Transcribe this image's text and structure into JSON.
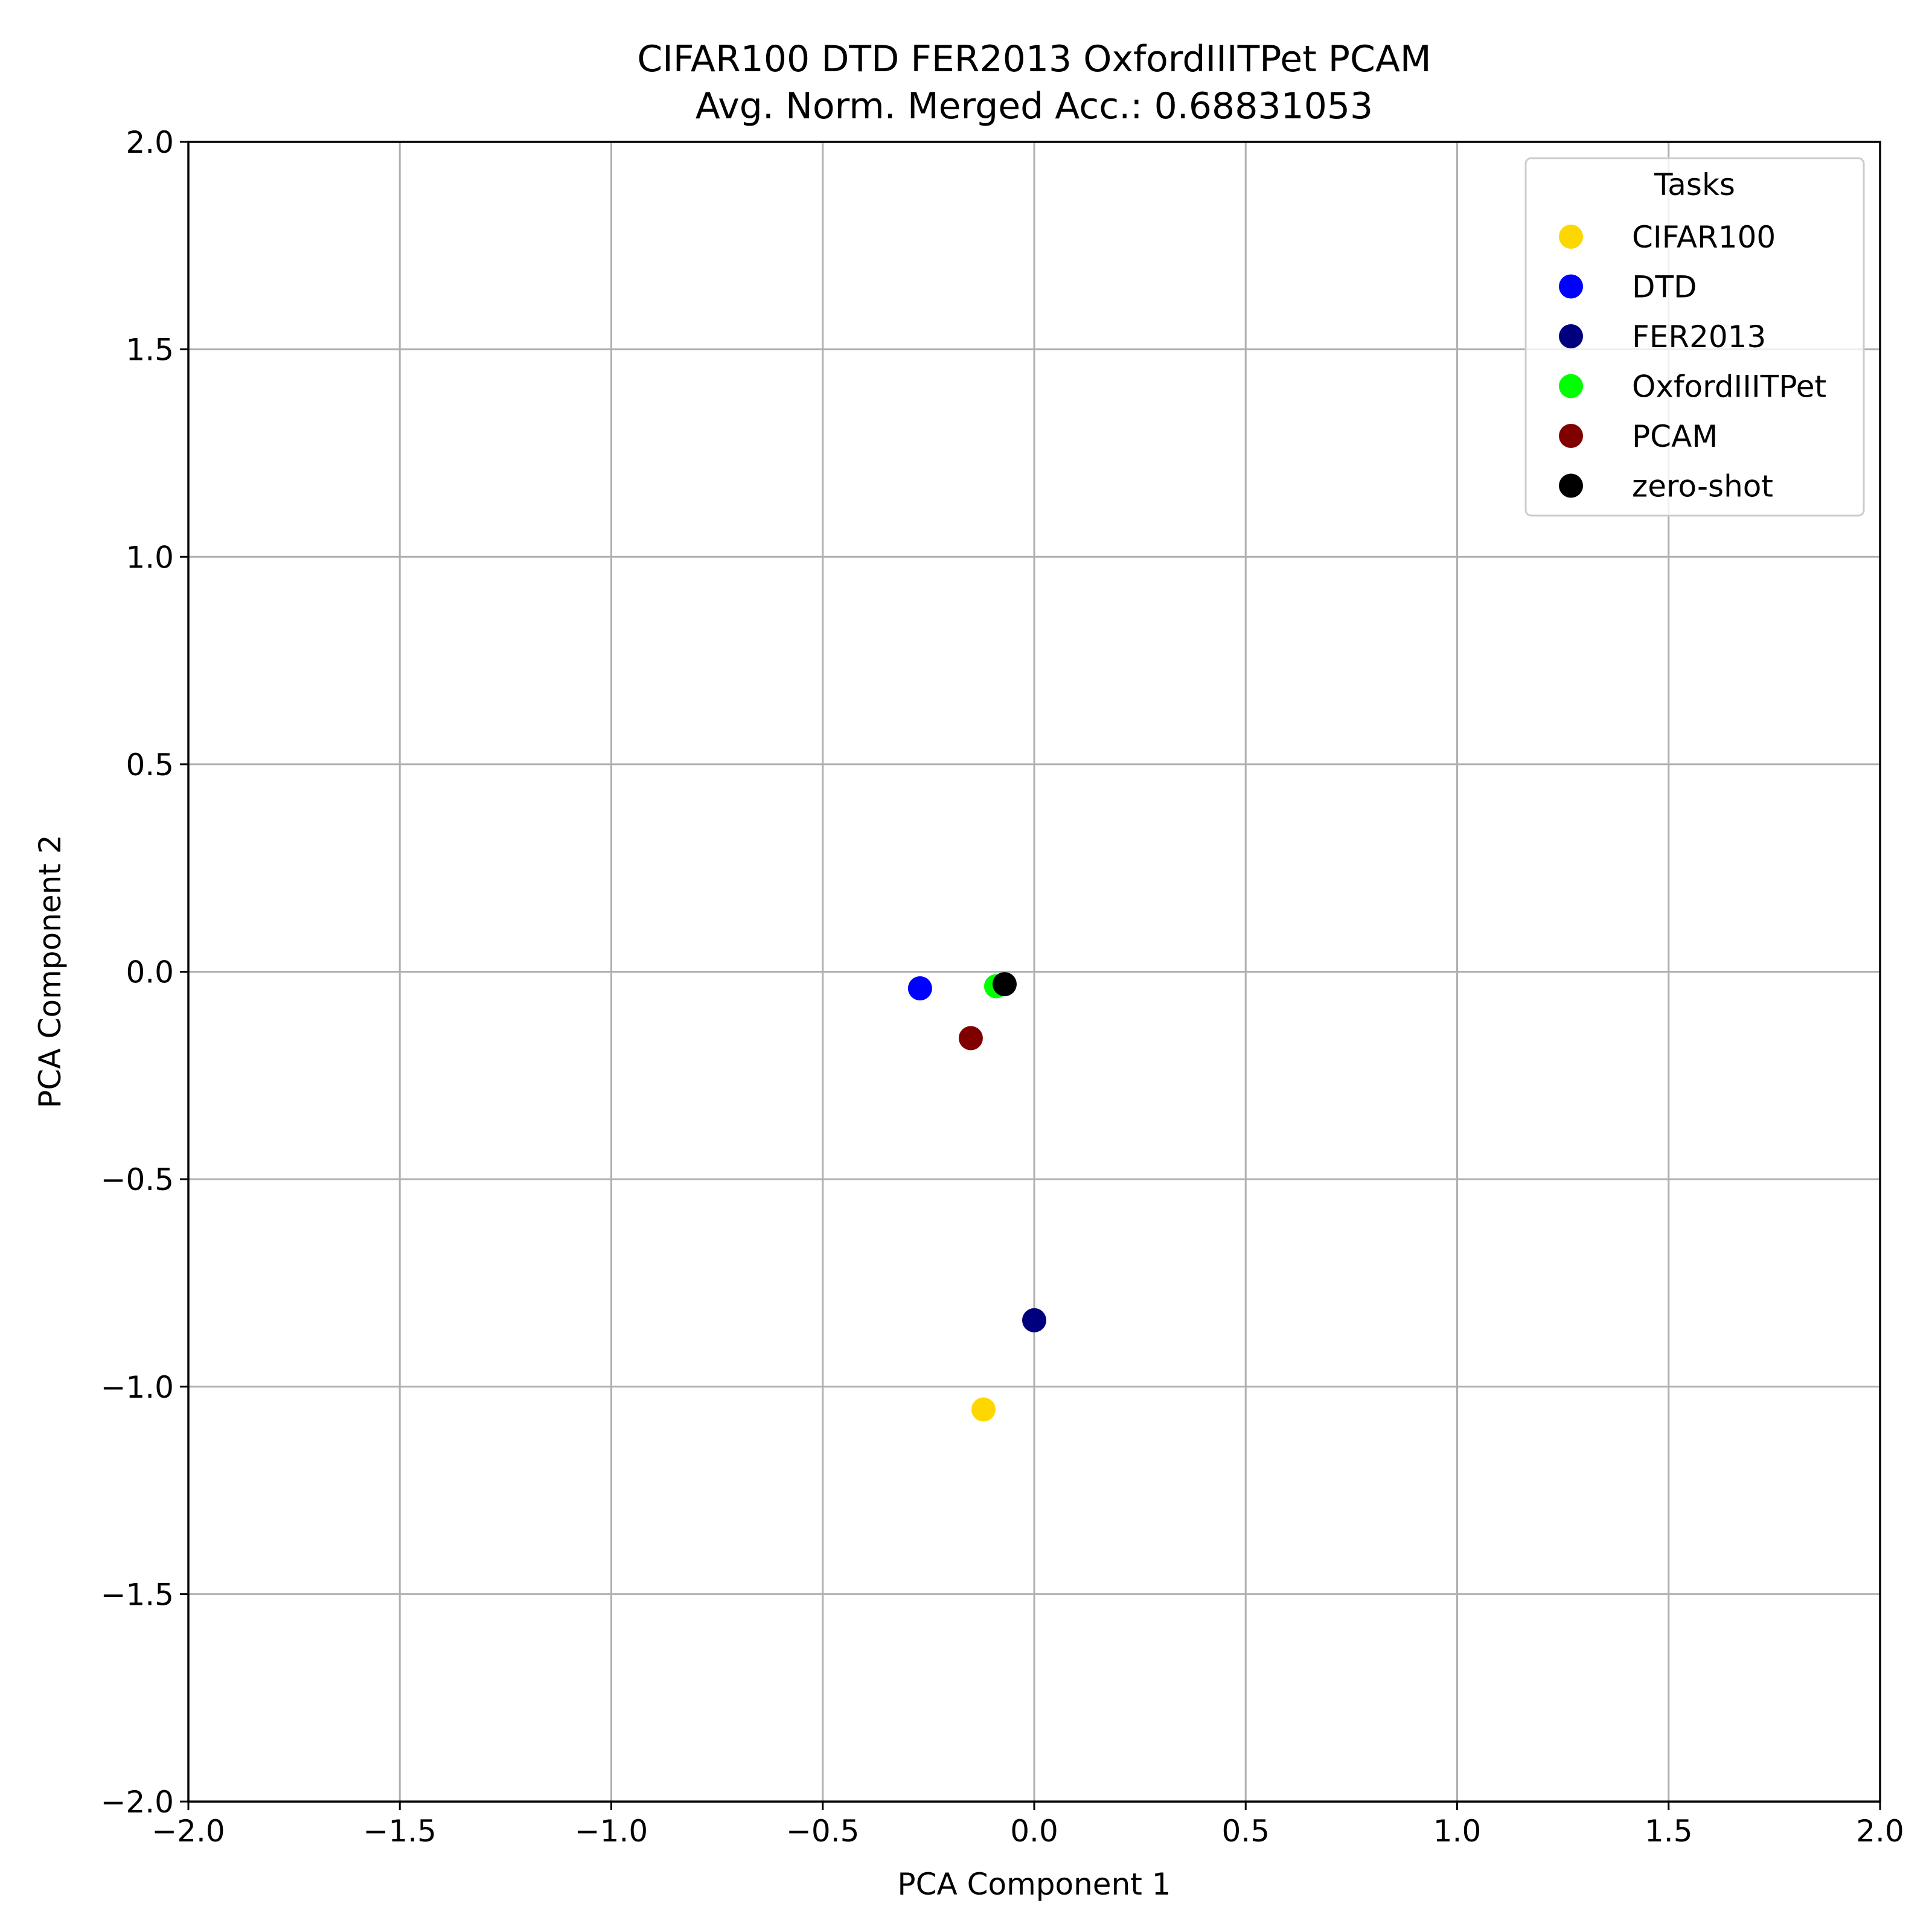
{
  "chart_data": {
    "type": "scatter",
    "title": "CIFAR100 DTD FER2013 OxfordIIITPet PCAM",
    "subtitle": "Avg. Norm. Merged Acc.: 0.68831053",
    "xlabel": "PCA Component 1",
    "ylabel": "PCA Component 2",
    "xlim": [
      -2.0,
      2.0
    ],
    "ylim": [
      -2.0,
      2.0
    ],
    "xticks": [
      -2.0,
      -1.5,
      -1.0,
      -0.5,
      0.0,
      0.5,
      1.0,
      1.5,
      2.0
    ],
    "yticks": [
      -2.0,
      -1.5,
      -1.0,
      -0.5,
      0.0,
      0.5,
      1.0,
      1.5,
      2.0
    ],
    "xtick_labels": [
      "−2.0",
      "−1.5",
      "−1.0",
      "−0.5",
      "0.0",
      "0.5",
      "1.0",
      "1.5",
      "2.0"
    ],
    "ytick_labels": [
      "−2.0",
      "−1.5",
      "−1.0",
      "−0.5",
      "0.0",
      "0.5",
      "1.0",
      "1.5",
      "2.0"
    ],
    "grid": true,
    "legend": {
      "title": "Tasks",
      "placement": "top-right"
    },
    "series": [
      {
        "name": "CIFAR100",
        "color": "#ffd700",
        "points": [
          {
            "x": -0.12,
            "y": -1.055
          }
        ]
      },
      {
        "name": "DTD",
        "color": "#0000ff",
        "points": [
          {
            "x": -0.27,
            "y": -0.04
          }
        ]
      },
      {
        "name": "FER2013",
        "color": "#00007f",
        "points": [
          {
            "x": 0.0,
            "y": -0.84
          }
        ]
      },
      {
        "name": "OxfordIIITPet",
        "color": "#00ff00",
        "points": [
          {
            "x": -0.09,
            "y": -0.035
          }
        ]
      },
      {
        "name": "PCAM",
        "color": "#800000",
        "points": [
          {
            "x": -0.15,
            "y": -0.16
          }
        ]
      },
      {
        "name": "zero-shot",
        "color": "#000000",
        "points": [
          {
            "x": -0.07,
            "y": -0.03
          }
        ]
      }
    ]
  }
}
